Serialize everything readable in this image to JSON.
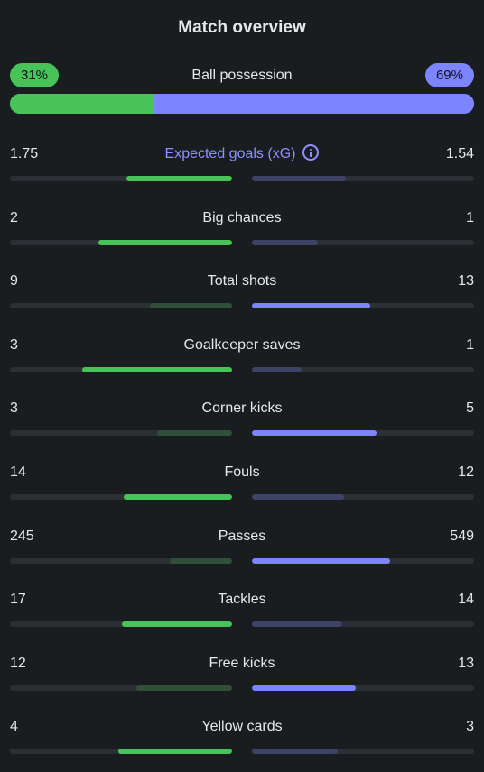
{
  "title": "Match overview",
  "possession": {
    "label": "Ball possession",
    "home_label": "31%",
    "away_label": "69%",
    "home_pct": 31,
    "away_pct": 69
  },
  "colors": {
    "home": "#47c357",
    "away": "#7d84ff",
    "accent": "#8b90ff",
    "background": "#1a1d20"
  },
  "stats": [
    {
      "name": "xg",
      "label": "Expected goals (xG)",
      "home": "1.75",
      "away": "1.54",
      "home_fraction": 0.53,
      "away_fraction": 0.47,
      "accent": true,
      "info_icon": "info-icon"
    },
    {
      "name": "big-chances",
      "label": "Big chances",
      "home": "2",
      "away": "1",
      "home_fraction": 0.67,
      "away_fraction": 0.33
    },
    {
      "name": "total-shots",
      "label": "Total shots",
      "home": "9",
      "away": "13",
      "home_fraction": 0.41,
      "away_fraction": 0.59
    },
    {
      "name": "goalkeeper-saves",
      "label": "Goalkeeper saves",
      "home": "3",
      "away": "1",
      "home_fraction": 0.75,
      "away_fraction": 0.25
    },
    {
      "name": "corner-kicks",
      "label": "Corner kicks",
      "home": "3",
      "away": "5",
      "home_fraction": 0.375,
      "away_fraction": 0.625
    },
    {
      "name": "fouls",
      "label": "Fouls",
      "home": "14",
      "away": "12",
      "home_fraction": 0.54,
      "away_fraction": 0.46
    },
    {
      "name": "passes",
      "label": "Passes",
      "home": "245",
      "away": "549",
      "home_fraction": 0.31,
      "away_fraction": 0.69
    },
    {
      "name": "tackles",
      "label": "Tackles",
      "home": "17",
      "away": "14",
      "home_fraction": 0.55,
      "away_fraction": 0.45
    },
    {
      "name": "free-kicks",
      "label": "Free kicks",
      "home": "12",
      "away": "13",
      "home_fraction": 0.48,
      "away_fraction": 0.52
    },
    {
      "name": "yellow-cards",
      "label": "Yellow cards",
      "home": "4",
      "away": "3",
      "home_fraction": 0.57,
      "away_fraction": 0.43
    }
  ]
}
